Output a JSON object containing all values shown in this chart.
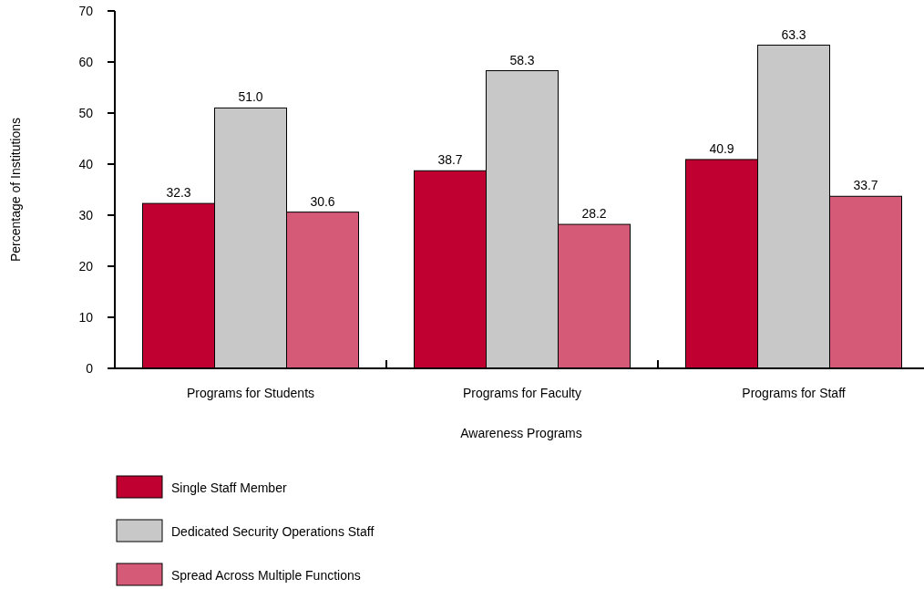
{
  "chart_data": {
    "type": "bar",
    "xlabel": "Awareness Programs",
    "ylabel": "Percentage of Institutions",
    "categories": [
      "Programs for Students",
      "Programs for Faculty",
      "Programs for Staff"
    ],
    "series": [
      {
        "name": "Single Staff Member",
        "color": "#bf0030",
        "values": [
          32.3,
          38.7,
          40.9
        ],
        "value_labels": [
          "32.3",
          "38.7",
          "40.9"
        ]
      },
      {
        "name": "Dedicated Security Operations Staff",
        "color": "#c8c8c8",
        "values": [
          51.0,
          58.3,
          63.3
        ],
        "value_labels": [
          "51.0",
          "58.3",
          "63.3"
        ]
      },
      {
        "name": "Spread Across Multiple Functions",
        "color": "#d45a78",
        "values": [
          30.6,
          28.2,
          33.7
        ],
        "value_labels": [
          "30.6",
          "28.2",
          "33.7"
        ]
      }
    ],
    "ylim": [
      0,
      70
    ],
    "yticks": [
      0,
      10,
      20,
      30,
      40,
      50,
      60,
      70
    ],
    "grid": false,
    "legend": "bottom left"
  }
}
